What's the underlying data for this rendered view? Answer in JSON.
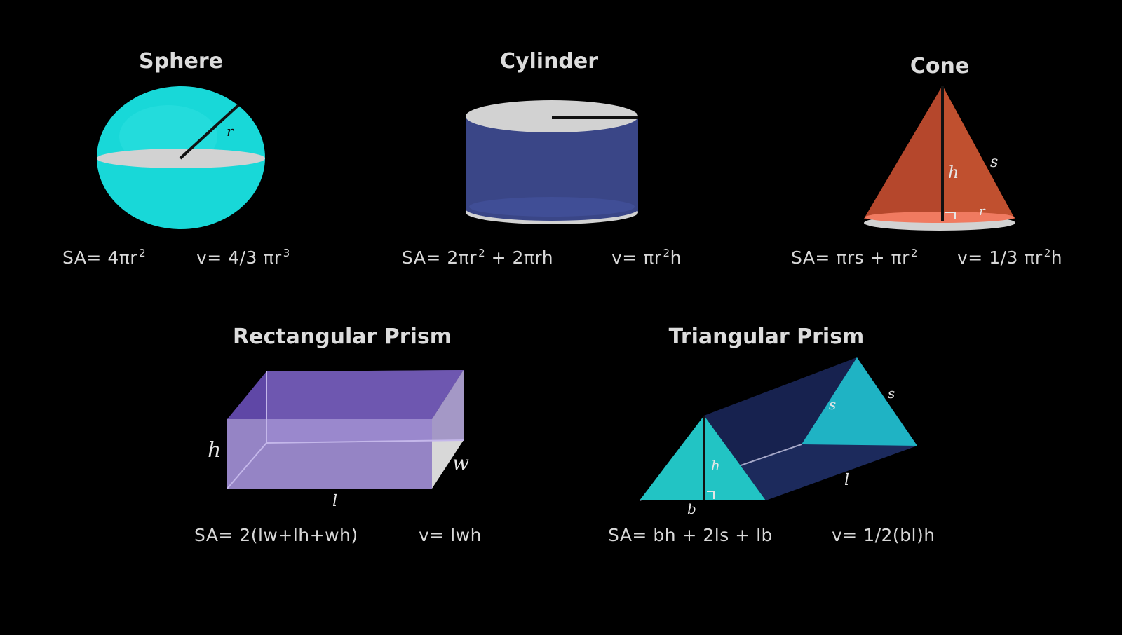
{
  "colors": {
    "background": "#000000",
    "sphere": "#18d8d8",
    "cylinder": "#3a4687",
    "cone": "#b5472c",
    "rect_prism": "#8e79c9",
    "tri_prism": "#1fb3c4",
    "cap": "#d2d2d2"
  },
  "sphere": {
    "title": "Sphere",
    "label_r": "r",
    "sa_prefix": "SA= 4πr",
    "sa_exp": "2",
    "v_prefix": "v= 4/3 πr",
    "v_exp": "3"
  },
  "cylinder": {
    "title": "Cylinder",
    "sa_part1": "SA= 2πr",
    "sa_exp": "2",
    "sa_part2": " + 2πrh",
    "v_part1": "v= πr",
    "v_exp": "2",
    "v_part2": "h"
  },
  "cone": {
    "title": "Cone",
    "label_h": "h",
    "label_s": "s",
    "label_r": "r",
    "sa_prefix": "SA= πrs + πr",
    "sa_exp": "2",
    "v_part1": "v= 1/3 πr",
    "v_exp": "2",
    "v_part2": "h"
  },
  "rect_prism": {
    "title": "Rectangular Prism",
    "label_h": "h",
    "label_w": "w",
    "label_l": "l",
    "sa": "SA= 2(lw+lh+wh)",
    "v": "v= lwh"
  },
  "tri_prism": {
    "title": "Triangular Prism",
    "label_s1": "s",
    "label_s2": "s",
    "label_h": "h",
    "label_b": "b",
    "label_l": "l",
    "sa": "SA= bh + 2ls + lb",
    "v": "v= 1/2(bl)h"
  }
}
